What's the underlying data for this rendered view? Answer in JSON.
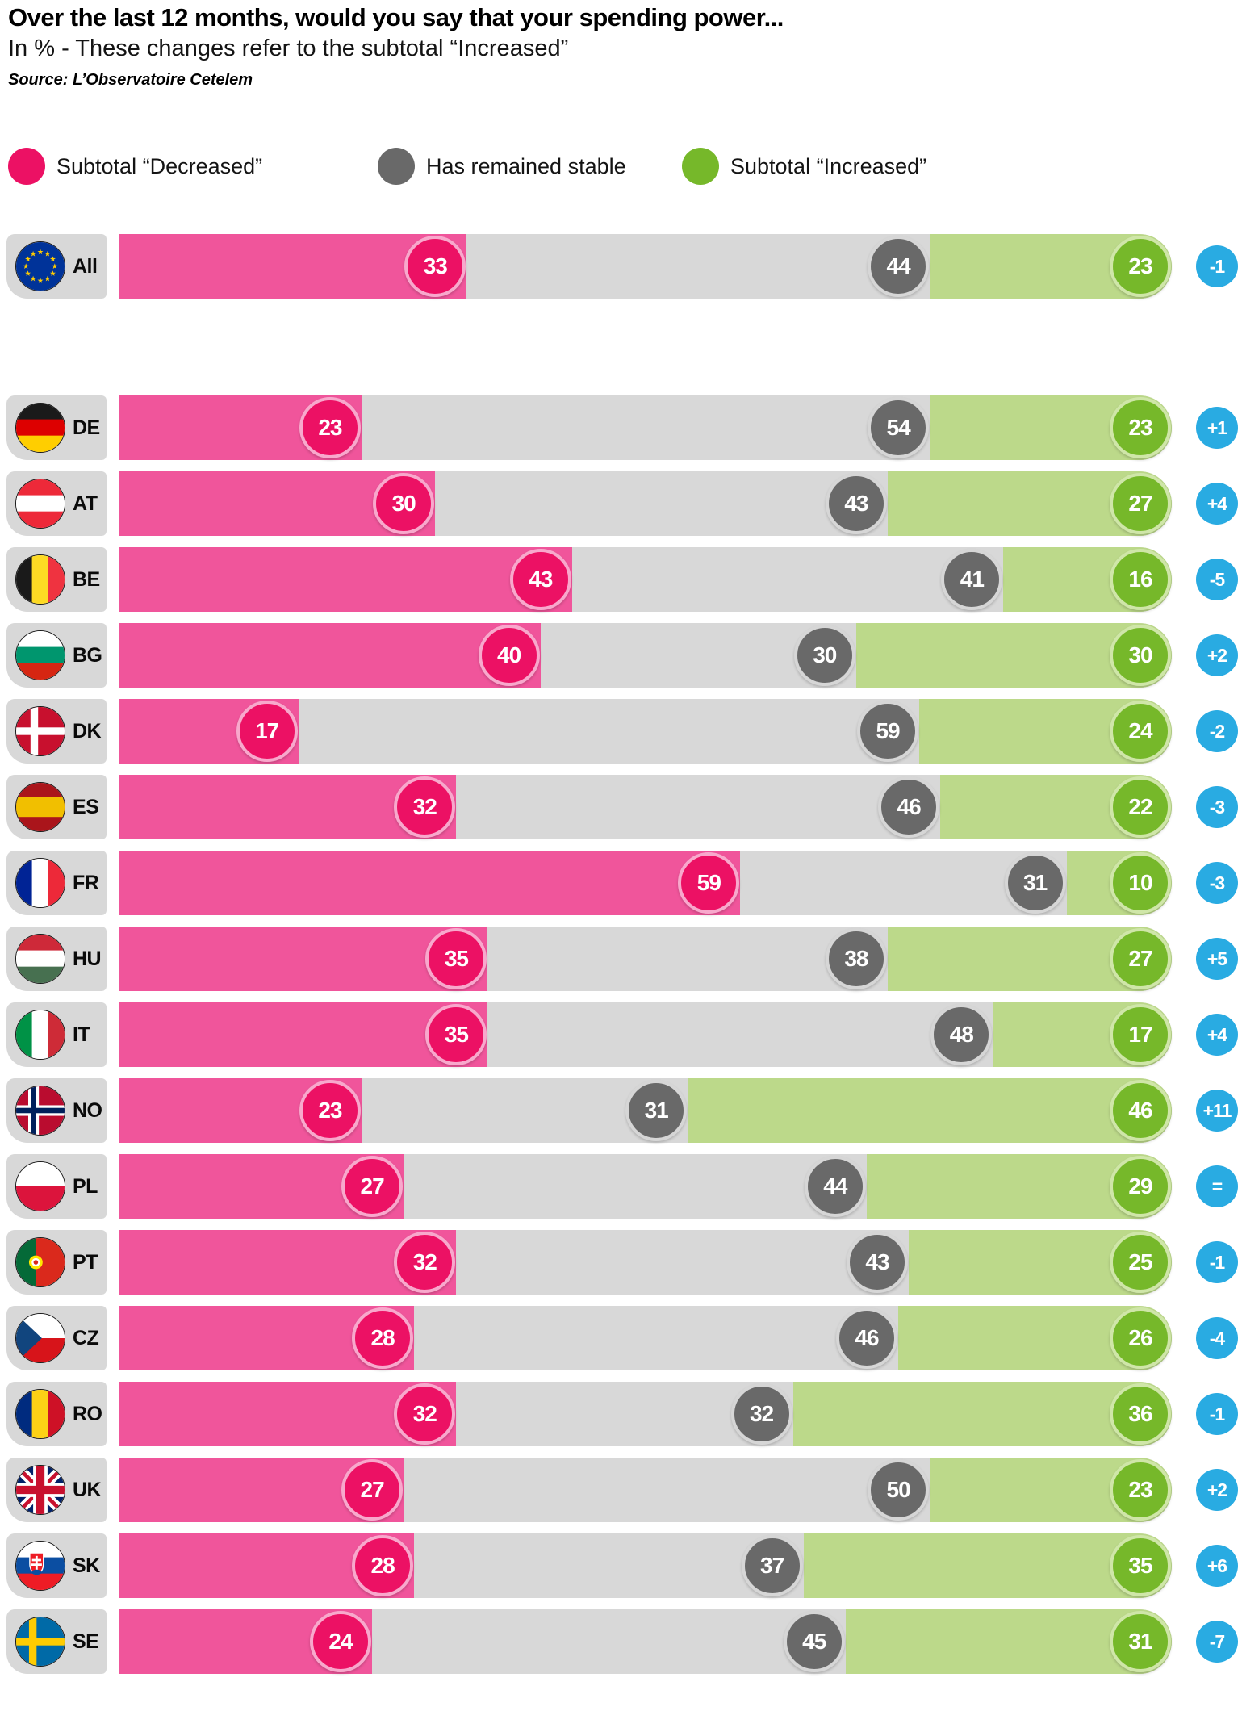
{
  "header": {
    "title": "Over the last 12 months, would you say that your spending power...",
    "subtitle": "In % - These changes refer to the subtotal “Increased”",
    "source": "Source: L’Observatoire Cetelem"
  },
  "legend": [
    {
      "label": "Subtotal “Decreased”",
      "color": "#ec1164"
    },
    {
      "label": "Has remained stable",
      "color": "#696969"
    },
    {
      "label": "Subtotal “Increased”",
      "color": "#76b82a"
    }
  ],
  "flags": [
    "eu",
    "de",
    "at",
    "be",
    "bg",
    "dk",
    "es",
    "fr",
    "hu",
    "it",
    "no",
    "pl",
    "pt",
    "cz",
    "ro",
    "uk",
    "sk",
    "se"
  ],
  "colors": {
    "decreased_bar": "#f0559b",
    "decreased_circle": "#ec1164",
    "stable_bar": "#d8d8d8",
    "stable_circle": "#696969",
    "increased_bar": "#bcd98a",
    "increased_circle": "#76b82a",
    "change_badge": "#29abe2",
    "label_box": "#d8d8d8"
  },
  "chart_data": {
    "type": "bar",
    "variant": "stacked-horizontal",
    "title": "Over the last 12 months, would you say that your spending power...",
    "unit": "%",
    "xlim": [
      0,
      100
    ],
    "categories": [
      "All",
      "DE",
      "AT",
      "BE",
      "BG",
      "DK",
      "ES",
      "FR",
      "HU",
      "IT",
      "NO",
      "PL",
      "PT",
      "CZ",
      "RO",
      "UK",
      "SK",
      "SE"
    ],
    "series": [
      {
        "name": "Subtotal “Decreased”",
        "color": "#f0559b",
        "marker_color": "#ec1164",
        "values": [
          33,
          23,
          30,
          43,
          40,
          17,
          32,
          59,
          35,
          35,
          23,
          27,
          32,
          28,
          32,
          27,
          28,
          24
        ]
      },
      {
        "name": "Has remained stable",
        "color": "#d8d8d8",
        "marker_color": "#696969",
        "values": [
          44,
          54,
          43,
          41,
          30,
          59,
          46,
          31,
          38,
          48,
          31,
          44,
          43,
          46,
          32,
          50,
          37,
          45
        ]
      },
      {
        "name": "Subtotal “Increased”",
        "color": "#bcd98a",
        "marker_color": "#76b82a",
        "values": [
          23,
          23,
          27,
          16,
          30,
          24,
          22,
          10,
          27,
          17,
          46,
          29,
          25,
          26,
          36,
          23,
          35,
          31
        ]
      }
    ],
    "change_badges": {
      "color": "#29abe2",
      "values": [
        "-1",
        "+1",
        "+4",
        "-5",
        "+2",
        "-2",
        "-3",
        "-3",
        "+5",
        "+4",
        "+11",
        "=",
        "-1",
        "-4",
        "-1",
        "+2",
        "+6",
        "-7"
      ]
    }
  }
}
